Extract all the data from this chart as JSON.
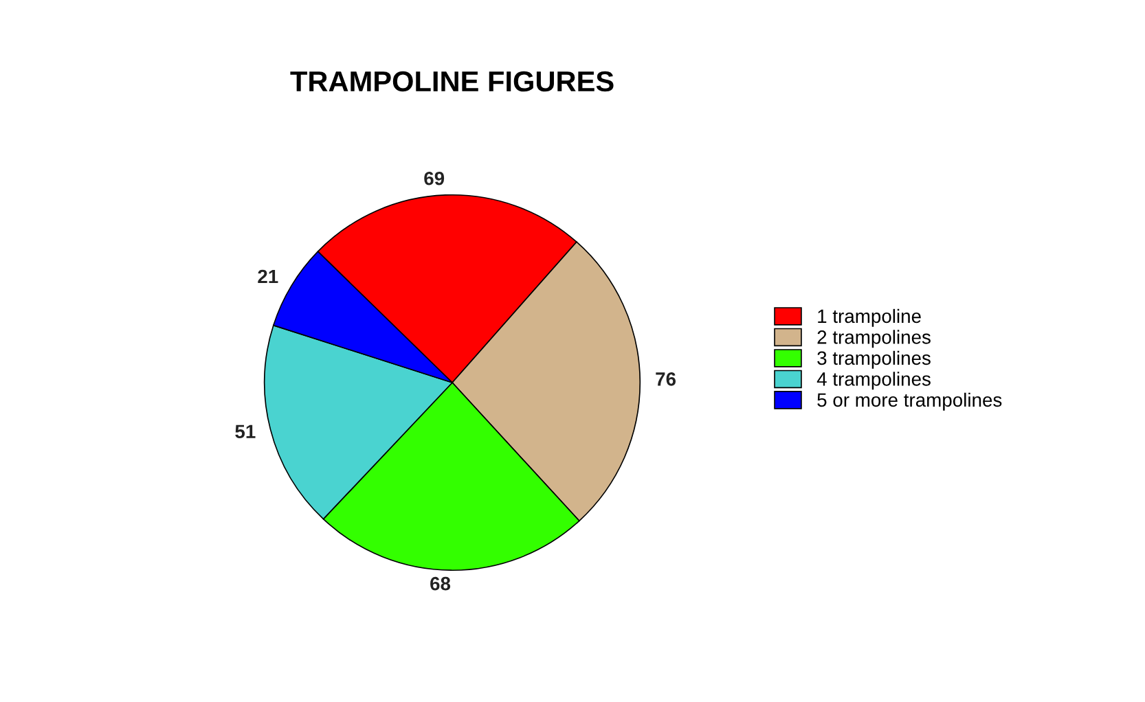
{
  "chart_data": {
    "type": "pie",
    "title": "TRAMPOLINE FIGURES",
    "categories": [
      "1 trampoline",
      "2 trampolines",
      "3 trampolines",
      "4 trampolines",
      "5 or more trampolines"
    ],
    "values": [
      69,
      76,
      68,
      51,
      21
    ],
    "colors": [
      "#ff0000",
      "#d2b48c",
      "#33ff00",
      "#4ad3d0",
      "#0000ff"
    ],
    "data_labels": true,
    "legend": "right"
  }
}
